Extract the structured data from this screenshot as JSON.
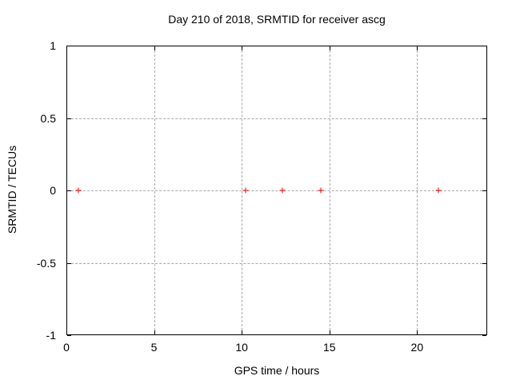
{
  "chart_data": {
    "type": "scatter",
    "title": "Day 210 of 2018, SRMTID for receiver ascg",
    "xlabel": "GPS time / hours",
    "ylabel": "SRMTID / TECUs",
    "xlim": [
      0,
      24
    ],
    "ylim": [
      -1,
      1
    ],
    "xticks": [
      0,
      5,
      10,
      15,
      20
    ],
    "yticks": [
      -1,
      -0.5,
      0,
      0.5,
      1
    ],
    "grid": true,
    "legend": "none",
    "marker": "plus",
    "marker_color": "#ff0000",
    "grid_color": "#a8a8a8",
    "border_color": "#000000",
    "background_color": "#ffffff",
    "series": [
      {
        "name": "SRMTID",
        "x": [
          0.7,
          10.2,
          12.3,
          14.5,
          21.2
        ],
        "y": [
          0,
          0,
          0,
          0,
          0
        ]
      }
    ]
  }
}
